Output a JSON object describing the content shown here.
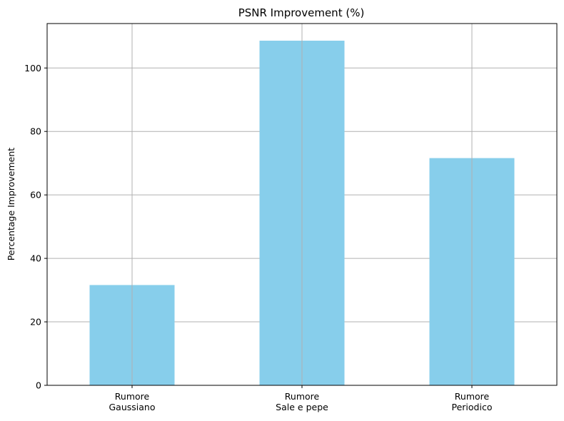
{
  "chart_data": {
    "type": "bar",
    "title": "PSNR Improvement (%)",
    "xlabel": "",
    "ylabel": "Percentage Improvement",
    "categories": [
      [
        "Rumore",
        "Gaussiano"
      ],
      [
        "Rumore",
        "Sale e pepe"
      ],
      [
        "Rumore",
        "Periodico"
      ]
    ],
    "values": [
      31.6,
      108.6,
      71.6
    ],
    "ylim": [
      0,
      114
    ],
    "yticks": [
      0,
      20,
      40,
      60,
      80,
      100
    ],
    "grid": true,
    "bar_color": "#87ceeb",
    "grid_color": "#b0b0b0"
  }
}
